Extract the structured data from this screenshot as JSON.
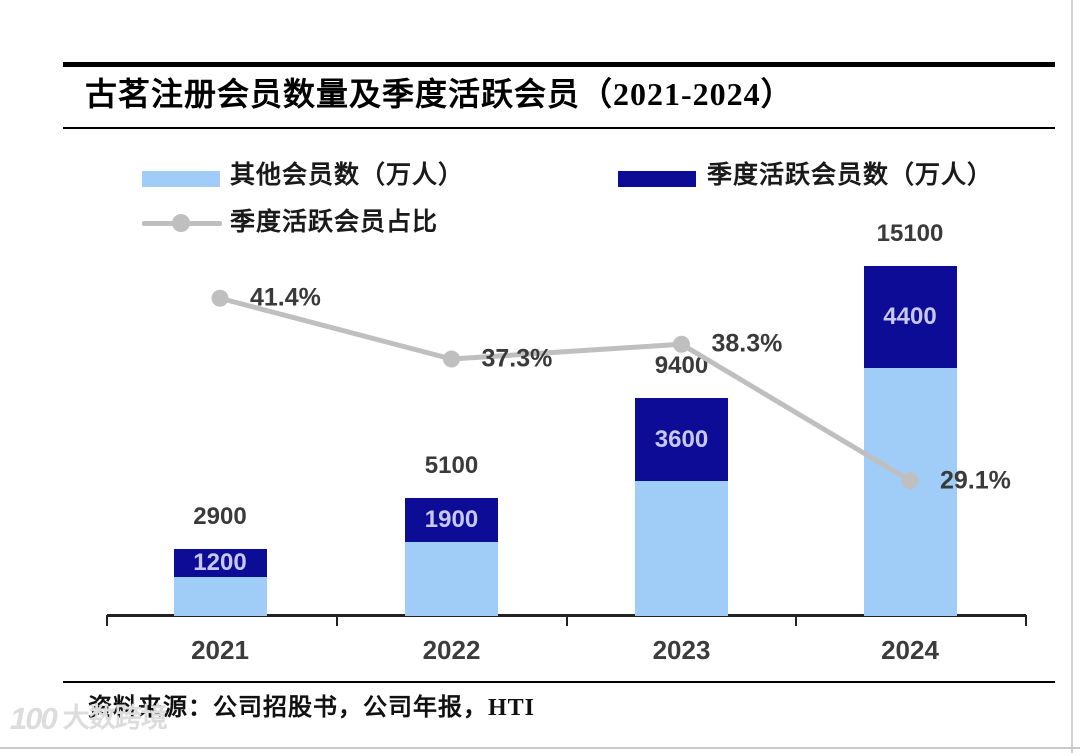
{
  "header": {
    "title": "古茗注册会员数量及季度活跃会员（2021-2024）"
  },
  "legend": {
    "items": [
      {
        "label": "其他会员数（万人）",
        "marker": "swatch",
        "color_key": "light_blue"
      },
      {
        "label": "季度活跃会员数（万人）",
        "marker": "swatch",
        "color_key": "dark_blue"
      },
      {
        "label": "季度活跃会员占比",
        "marker": "line-dot",
        "color_key": "line_gray"
      }
    ]
  },
  "colors": {
    "light_blue": "#9fcdf8",
    "dark_blue": "#0d0c97",
    "line_gray": "#bfbfbf",
    "inner_label": "#c6c8ef",
    "label_dark": "#3a3a3a",
    "axis_black": "#222222"
  },
  "chart_data": {
    "type": "bar",
    "subtype": "stacked-bars-with-percentage-line",
    "title": "古茗注册会员数量及季度活跃会员（2021-2024）",
    "categories": [
      "2021",
      "2022",
      "2023",
      "2024"
    ],
    "series": [
      {
        "name": "其他会员数（万人）",
        "type": "bar-stack-bottom",
        "values": [
          1700,
          3200,
          5800,
          10700
        ],
        "color_key": "light_blue"
      },
      {
        "name": "季度活跃会员数（万人）",
        "type": "bar-stack-top",
        "values": [
          1200,
          1900,
          3600,
          4400
        ],
        "color_key": "dark_blue"
      },
      {
        "name": "季度活跃会员占比",
        "type": "line",
        "values": [
          41.4,
          37.3,
          38.3,
          29.1
        ],
        "unit": "%",
        "color_key": "line_gray"
      }
    ],
    "bar_total_labels": [
      "2900",
      "5100",
      "9400",
      "15100"
    ],
    "active_segment_labels": [
      "1200",
      "1900",
      "3600",
      "4400"
    ],
    "pct_point_labels": [
      "41.4%",
      "37.3%",
      "38.3%",
      "29.1%"
    ],
    "xlabel": "",
    "ylabel": "",
    "grid": false,
    "legend_position": "top"
  },
  "footer": {
    "source": "资料来源：公司招股书，公司年报，HTI"
  },
  "watermark": {
    "logo_text": "100",
    "brand": "大数跨境"
  }
}
